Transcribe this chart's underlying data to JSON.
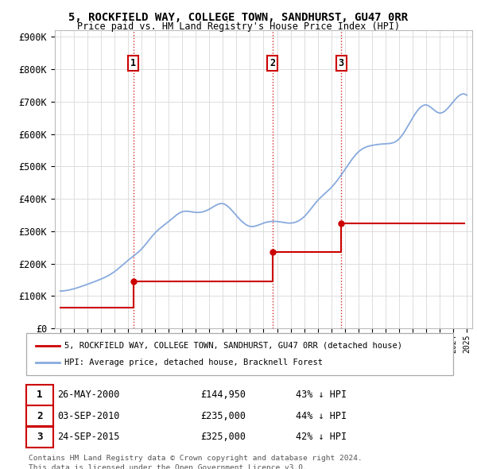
{
  "title": "5, ROCKFIELD WAY, COLLEGE TOWN, SANDHURST, GU47 0RR",
  "subtitle": "Price paid vs. HM Land Registry's House Price Index (HPI)",
  "ylabel_ticks": [
    "£0",
    "£100K",
    "£200K",
    "£300K",
    "£400K",
    "£500K",
    "£600K",
    "£700K",
    "£800K",
    "£900K"
  ],
  "ytick_vals": [
    0,
    100000,
    200000,
    300000,
    400000,
    500000,
    600000,
    700000,
    800000,
    900000
  ],
  "ylim": [
    0,
    920000
  ],
  "xlim_start": 1994.6,
  "xlim_end": 2025.4,
  "sales": [
    {
      "num": 1,
      "date": "26-MAY-2000",
      "year": 2000.4,
      "price": 144950,
      "pct": "43%"
    },
    {
      "num": 2,
      "date": "03-SEP-2010",
      "year": 2010.67,
      "price": 235000,
      "pct": "44%"
    },
    {
      "num": 3,
      "date": "24-SEP-2015",
      "year": 2015.73,
      "price": 325000,
      "pct": "42%"
    }
  ],
  "red_line_color": "#cc0000",
  "hpi_line_color": "#88aadd",
  "legend_line1": "5, ROCKFIELD WAY, COLLEGE TOWN, SANDHURST, GU47 0RR (detached house)",
  "legend_line2": "HPI: Average price, detached house, Bracknell Forest",
  "footer1": "Contains HM Land Registry data © Crown copyright and database right 2024.",
  "footer2": "This data is licensed under the Open Government Licence v3.0.",
  "sale_box_color": "#cc0000",
  "dashed_line_color": "#cc0000",
  "bg_color": "#ffffff",
  "grid_color": "#dddddd",
  "hpi_years": [
    1995,
    1996,
    1997,
    1998,
    1999,
    2000,
    2001,
    2002,
    2003,
    2004,
    2005,
    2006,
    2007,
    2008,
    2009,
    2010,
    2011,
    2012,
    2013,
    2014,
    2015,
    2016,
    2017,
    2018,
    2019,
    2020,
    2021,
    2022,
    2023,
    2024,
    2025
  ],
  "hpi_values": [
    115000,
    122000,
    136000,
    152000,
    175000,
    210000,
    245000,
    295000,
    330000,
    360000,
    358000,
    368000,
    385000,
    348000,
    315000,
    325000,
    330000,
    325000,
    345000,
    395000,
    435000,
    490000,
    545000,
    565000,
    570000,
    585000,
    650000,
    690000,
    665000,
    700000,
    720000
  ],
  "red_hpi_years": [
    1995,
    2000.4,
    2000.4,
    2010.67,
    2010.67,
    2015.73,
    2015.73,
    2024.8
  ],
  "red_hpi_values": [
    65000,
    65000,
    144950,
    144950,
    235000,
    235000,
    325000,
    325000
  ]
}
